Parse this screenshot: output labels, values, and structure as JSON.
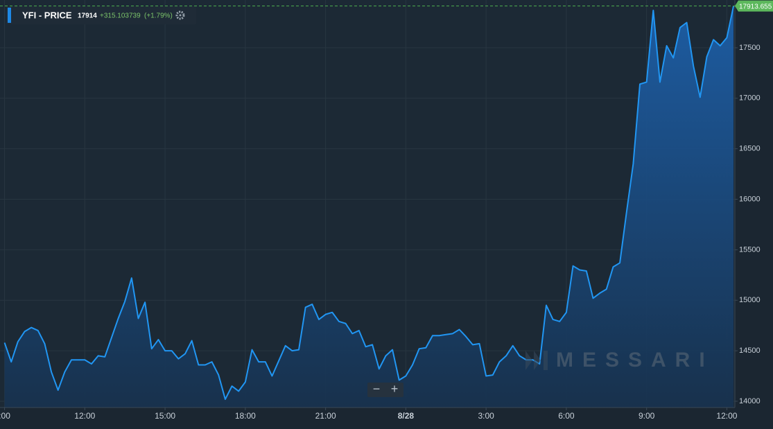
{
  "chart_data": {
    "type": "line",
    "title": "YFI - PRICE",
    "last_price": 17914,
    "change": "+315.103739",
    "change_pct": "(+1.79%)",
    "watermark": "MESSARI",
    "controls": [
      "−",
      "+"
    ],
    "color": "#2196f3",
    "grid": true,
    "xlim": [
      8.83,
      36.3
    ],
    "xticks": [
      {
        "value": 9,
        "label": ":00"
      },
      {
        "value": 12,
        "label": "12:00"
      },
      {
        "value": 15,
        "label": "15:00"
      },
      {
        "value": 18,
        "label": "18:00"
      },
      {
        "value": 21,
        "label": "21:00"
      },
      {
        "value": 24,
        "label": "8/28"
      },
      {
        "value": 27,
        "label": "3:00"
      },
      {
        "value": 30,
        "label": "6:00"
      },
      {
        "value": 33,
        "label": "9:00"
      },
      {
        "value": 36,
        "label": "12:00"
      }
    ],
    "ylim": [
      13938,
      17973
    ],
    "yticks": [
      14000,
      14500,
      15000,
      15500,
      16000,
      16500,
      17000,
      17500
    ],
    "x": [
      9,
      9.25,
      9.5,
      9.75,
      10,
      10.25,
      10.5,
      10.75,
      11,
      11.25,
      11.5,
      11.75,
      12,
      12.25,
      12.5,
      12.75,
      13,
      13.25,
      13.5,
      13.75,
      14,
      14.25,
      14.5,
      14.75,
      15,
      15.25,
      15.5,
      15.75,
      16,
      16.25,
      16.5,
      16.75,
      17,
      17.25,
      17.5,
      17.75,
      18,
      18.25,
      18.5,
      18.75,
      19,
      19.25,
      19.5,
      19.75,
      20,
      20.25,
      20.5,
      20.75,
      21,
      21.25,
      21.5,
      21.75,
      22,
      22.25,
      22.5,
      22.75,
      23,
      23.25,
      23.5,
      23.75,
      24,
      24.25,
      24.5,
      24.75,
      25,
      25.25,
      25.5,
      25.75,
      26,
      26.25,
      26.5,
      26.75,
      27,
      27.25,
      27.5,
      27.75,
      28,
      28.25,
      28.5,
      28.75,
      29,
      29.25,
      29.5,
      29.75,
      30,
      30.25,
      30.5,
      30.75,
      31,
      31.25,
      31.5,
      31.75,
      32,
      32.25,
      32.5,
      32.75,
      33,
      33.25,
      33.5,
      33.75,
      34,
      34.25,
      34.5,
      34.75,
      35,
      35.25,
      35.5,
      35.75,
      36,
      36.25
    ],
    "values": [
      14580,
      14390,
      14590,
      14690,
      14730,
      14700,
      14570,
      14290,
      14110,
      14290,
      14410,
      14410,
      14410,
      14370,
      14450,
      14440,
      14630,
      14820,
      14990,
      15220,
      14820,
      14980,
      14520,
      14610,
      14500,
      14500,
      14420,
      14470,
      14600,
      14360,
      14360,
      14390,
      14260,
      14020,
      14150,
      14100,
      14190,
      14510,
      14390,
      14390,
      14250,
      14400,
      14550,
      14500,
      14510,
      14930,
      14960,
      14810,
      14860,
      14880,
      14790,
      14770,
      14670,
      14700,
      14540,
      14560,
      14320,
      14450,
      14510,
      14210,
      14250,
      14360,
      14520,
      14530,
      14650,
      14650,
      14660,
      14670,
      14710,
      14640,
      14560,
      14570,
      14250,
      14260,
      14390,
      14450,
      14550,
      14450,
      14410,
      14410,
      14370,
      14950,
      14810,
      14790,
      14880,
      15340,
      15300,
      15290,
      15020,
      15070,
      15110,
      15330,
      15370,
      15870,
      16350,
      17140,
      17160,
      17870,
      17160,
      17520,
      17400,
      17700,
      17750,
      17320,
      17010,
      17410,
      17580,
      17520,
      17600,
      17913.655
    ]
  }
}
